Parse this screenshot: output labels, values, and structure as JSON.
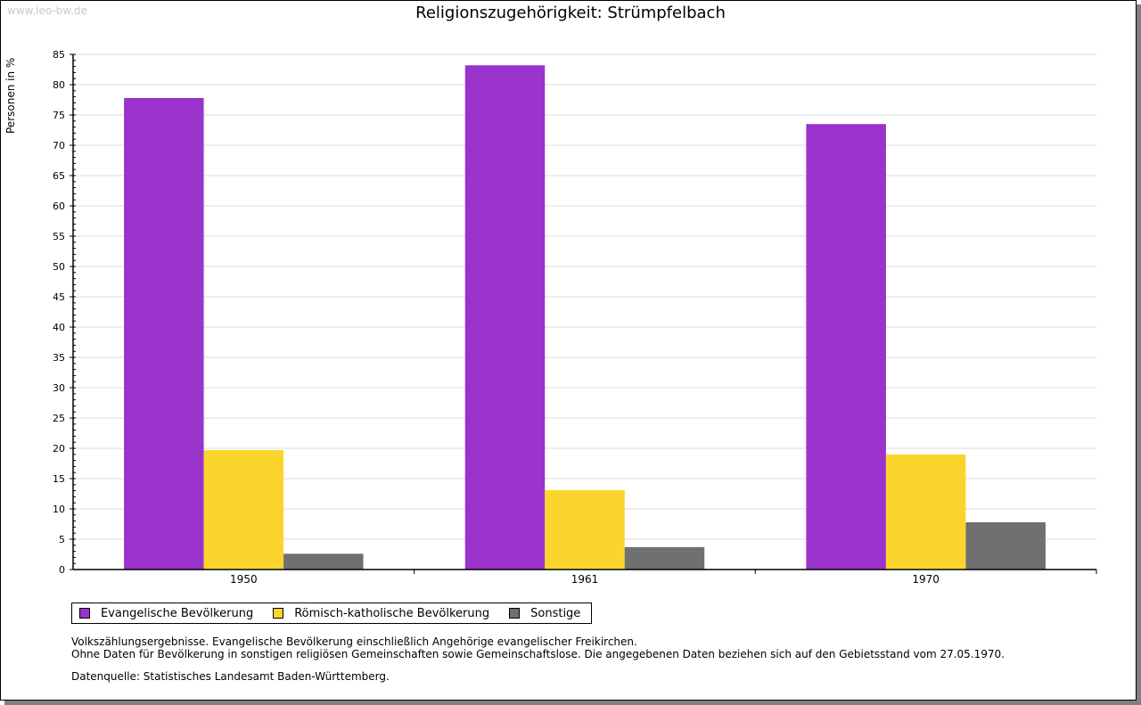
{
  "watermark": "www.leo-bw.de",
  "chart_data": {
    "type": "bar",
    "title": "Religionszugehörigkeit: Strümpfelbach",
    "xlabel": "",
    "ylabel": "Personen in %",
    "ylim": [
      0,
      85
    ],
    "yticks": [
      0,
      5,
      10,
      15,
      20,
      25,
      30,
      35,
      40,
      45,
      50,
      55,
      60,
      65,
      70,
      75,
      80,
      85
    ],
    "grid": true,
    "legend_position": "bottom",
    "categories": [
      "1950",
      "1961",
      "1970"
    ],
    "series": [
      {
        "name": "Evangelische Bevölkerung",
        "color": "#9933cc",
        "values": [
          77.8,
          83.2,
          73.5
        ]
      },
      {
        "name": "Römisch-katholische Bevölkerung",
        "color": "#fcd52c",
        "values": [
          19.7,
          13.1,
          19.0
        ]
      },
      {
        "name": "Sonstige",
        "color": "#707070",
        "values": [
          2.6,
          3.7,
          7.8
        ]
      }
    ]
  },
  "notes": [
    "Volkszählungsergebnisse. Evangelische Bevölkerung einschließlich Angehörige evangelischer Freikirchen.",
    "Ohne Daten für Bevölkerung in sonstigen religiösen Gemeinschaften sowie Gemeinschaftslose. Die angegebenen Daten beziehen sich auf den Gebietsstand vom 27.05.1970."
  ],
  "source": "Datenquelle: Statistisches Landesamt Baden-Württemberg."
}
